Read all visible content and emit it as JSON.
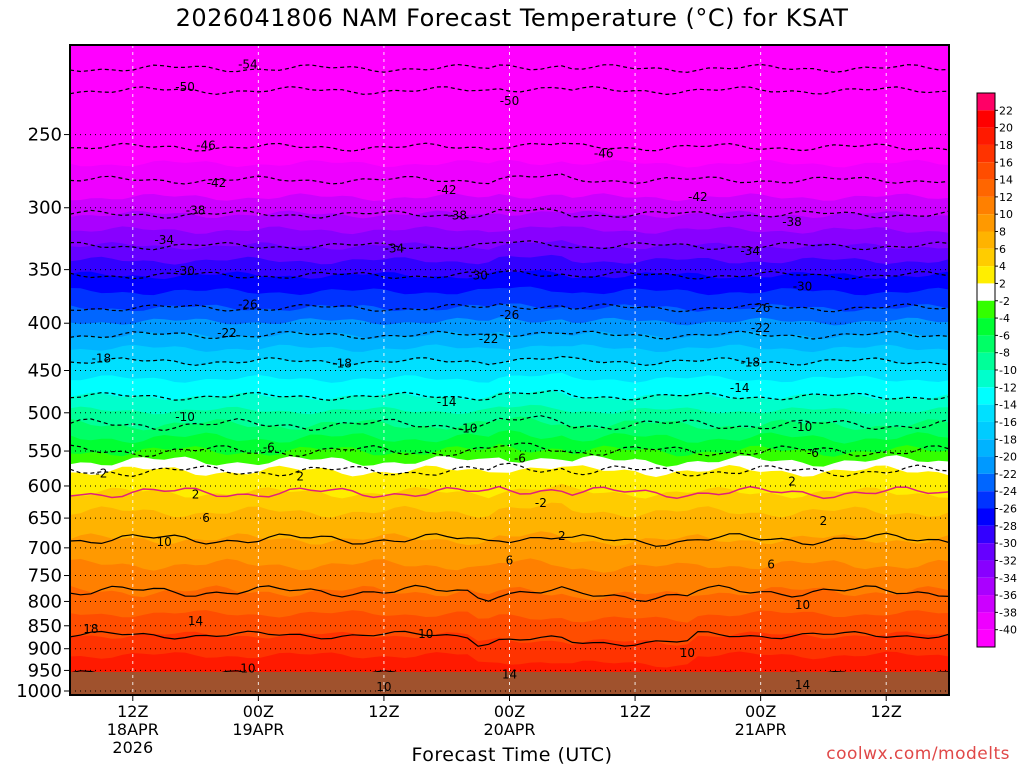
{
  "chart_data": {
    "type": "heatmap",
    "title": "2026041806 NAM Forecast Temperature (°C) for KSAT",
    "xlabel": "Forecast Time (UTC)",
    "ylabel": "",
    "credit": "coolwx.com/modelts",
    "y_scale": "log",
    "ylim": [
      1010,
      200
    ],
    "y_ticks": [
      250,
      300,
      350,
      400,
      450,
      500,
      550,
      600,
      650,
      700,
      750,
      800,
      850,
      900,
      950,
      1000
    ],
    "x_range_hours": [
      0,
      84
    ],
    "x_ticks": [
      {
        "hour": 6,
        "lines": [
          "12Z",
          "18APR",
          "2026"
        ]
      },
      {
        "hour": 18,
        "lines": [
          "00Z",
          "19APR"
        ]
      },
      {
        "hour": 30,
        "lines": [
          "12Z"
        ]
      },
      {
        "hour": 42,
        "lines": [
          "00Z",
          "20APR"
        ]
      },
      {
        "hour": 54,
        "lines": [
          "12Z"
        ]
      },
      {
        "hour": 66,
        "lines": [
          "00Z",
          "21APR"
        ]
      },
      {
        "hour": 78,
        "lines": [
          "12Z"
        ]
      }
    ],
    "colorbar_ticks": [
      22,
      20,
      18,
      16,
      14,
      12,
      10,
      8,
      6,
      4,
      2,
      -2,
      -4,
      -6,
      -8,
      -10,
      -12,
      -14,
      -16,
      -18,
      -20,
      -22,
      -24,
      -26,
      -28,
      -30,
      -32,
      -34,
      -36,
      -38,
      -40
    ],
    "colors": {
      "above_22": "#ff0066",
      "20": "#ff0000",
      "18": "#ff1a00",
      "16": "#ff3300",
      "14": "#ff4d00",
      "12": "#ff6600",
      "10": "#ff8000",
      "8": "#ff9900",
      "6": "#ffb300",
      "4": "#ffcc00",
      "2": "#ffee00",
      "-2": "#ffffff",
      "-4": "#33ff00",
      "-6": "#00ff33",
      "-8": "#00ff66",
      "-10": "#00ff99",
      "-12": "#00ffcc",
      "-14": "#00ffff",
      "-16": "#00e0ff",
      "-18": "#00ccff",
      "-20": "#00b3ff",
      "-22": "#0099ff",
      "-24": "#0066ff",
      "-26": "#0033ff",
      "-28": "#0000ff",
      "-30": "#3300ff",
      "-32": "#6600ff",
      "-34": "#8800ff",
      "-36": "#aa00ff",
      "-38": "#cc00ff",
      "-40": "#ee00ff",
      "below_-40": "#ff00ff",
      "ground": "#a0522d",
      "credit": "#e04848"
    },
    "isotherms": [
      {
        "temp": -54,
        "pressure": 212
      },
      {
        "temp": -50,
        "pressure": 224
      },
      {
        "temp": -46,
        "pressure": 258
      },
      {
        "temp": -42,
        "pressure": 280
      },
      {
        "temp": -38,
        "pressure": 305
      },
      {
        "temp": -34,
        "pressure": 330
      },
      {
        "temp": -30,
        "pressure": 355
      },
      {
        "temp": -26,
        "pressure": 385
      },
      {
        "temp": -22,
        "pressure": 412
      },
      {
        "temp": -18,
        "pressure": 440
      },
      {
        "temp": -14,
        "pressure": 480
      },
      {
        "temp": -10,
        "pressure": 515
      },
      {
        "temp": -6,
        "pressure": 550
      },
      {
        "temp": -2,
        "pressure": 578
      },
      {
        "temp": 2,
        "pressure": 610
      },
      {
        "temp": 6,
        "pressure": 685
      },
      {
        "temp": 10,
        "pressure": 780
      },
      {
        "temp": 14,
        "pressure": 870
      },
      {
        "temp": 18,
        "pressure": 960
      }
    ],
    "contour_labels": [
      {
        "text": "-54",
        "hour": 17,
        "pressure": 210
      },
      {
        "text": "-50",
        "hour": 11,
        "pressure": 222
      },
      {
        "text": "-50",
        "hour": 42,
        "pressure": 230
      },
      {
        "text": "-46",
        "hour": 13,
        "pressure": 257
      },
      {
        "text": "-46",
        "hour": 51,
        "pressure": 262
      },
      {
        "text": "-42",
        "hour": 14,
        "pressure": 282
      },
      {
        "text": "-42",
        "hour": 36,
        "pressure": 287
      },
      {
        "text": "-42",
        "hour": 60,
        "pressure": 292
      },
      {
        "text": "-38",
        "hour": 12,
        "pressure": 302
      },
      {
        "text": "-38",
        "hour": 37,
        "pressure": 306
      },
      {
        "text": "-38",
        "hour": 69,
        "pressure": 311
      },
      {
        "text": "-34",
        "hour": 9,
        "pressure": 325
      },
      {
        "text": "-34",
        "hour": 31,
        "pressure": 332
      },
      {
        "text": "-34",
        "hour": 65,
        "pressure": 334
      },
      {
        "text": "-30",
        "hour": 11,
        "pressure": 351
      },
      {
        "text": "-30",
        "hour": 39,
        "pressure": 355
      },
      {
        "text": "-30",
        "hour": 70,
        "pressure": 365
      },
      {
        "text": "-26",
        "hour": 17,
        "pressure": 382
      },
      {
        "text": "-26",
        "hour": 42,
        "pressure": 392
      },
      {
        "text": "-26",
        "hour": 66,
        "pressure": 385
      },
      {
        "text": "-22",
        "hour": 15,
        "pressure": 410
      },
      {
        "text": "-22",
        "hour": 40,
        "pressure": 416
      },
      {
        "text": "-22",
        "hour": 66,
        "pressure": 405
      },
      {
        "text": "-18",
        "hour": 3,
        "pressure": 437
      },
      {
        "text": "-18",
        "hour": 26,
        "pressure": 442
      },
      {
        "text": "-18",
        "hour": 65,
        "pressure": 441
      },
      {
        "text": "-14",
        "hour": 36,
        "pressure": 487
      },
      {
        "text": "-14",
        "hour": 64,
        "pressure": 470
      },
      {
        "text": "-10",
        "hour": 11,
        "pressure": 505
      },
      {
        "text": "-10",
        "hour": 38,
        "pressure": 520
      },
      {
        "text": "-10",
        "hour": 70,
        "pressure": 518
      },
      {
        "text": "-6",
        "hour": 19,
        "pressure": 545
      },
      {
        "text": "-6",
        "hour": 43,
        "pressure": 560
      },
      {
        "text": "-6",
        "hour": 71,
        "pressure": 553
      },
      {
        "text": "-2",
        "hour": 45,
        "pressure": 626
      },
      {
        "text": "2",
        "hour": 12,
        "pressure": 613
      },
      {
        "text": "2",
        "hour": 22,
        "pressure": 586
      },
      {
        "text": "2",
        "hour": 47,
        "pressure": 680
      },
      {
        "text": "2",
        "hour": 69,
        "pressure": 593
      },
      {
        "text": "2",
        "hour": 72,
        "pressure": 655
      },
      {
        "text": "6",
        "hour": 13,
        "pressure": 650
      },
      {
        "text": "6",
        "hour": 42,
        "pressure": 722
      },
      {
        "text": "6",
        "hour": 67,
        "pressure": 730
      },
      {
        "text": "10",
        "hour": 9,
        "pressure": 690
      },
      {
        "text": "10",
        "hour": 34,
        "pressure": 868
      },
      {
        "text": "10",
        "hour": 17,
        "pressure": 945
      },
      {
        "text": "10",
        "hour": 30,
        "pressure": 990
      },
      {
        "text": "10",
        "hour": 59,
        "pressure": 910
      },
      {
        "text": "10",
        "hour": 70,
        "pressure": 807
      },
      {
        "text": "14",
        "hour": 12,
        "pressure": 840
      },
      {
        "text": "14",
        "hour": 42,
        "pressure": 960
      },
      {
        "text": "14",
        "hour": 70,
        "pressure": 985
      },
      {
        "text": "18",
        "hour": 2,
        "pressure": 857
      },
      {
        "text": "-2",
        "hour": 3,
        "pressure": 582
      }
    ]
  }
}
